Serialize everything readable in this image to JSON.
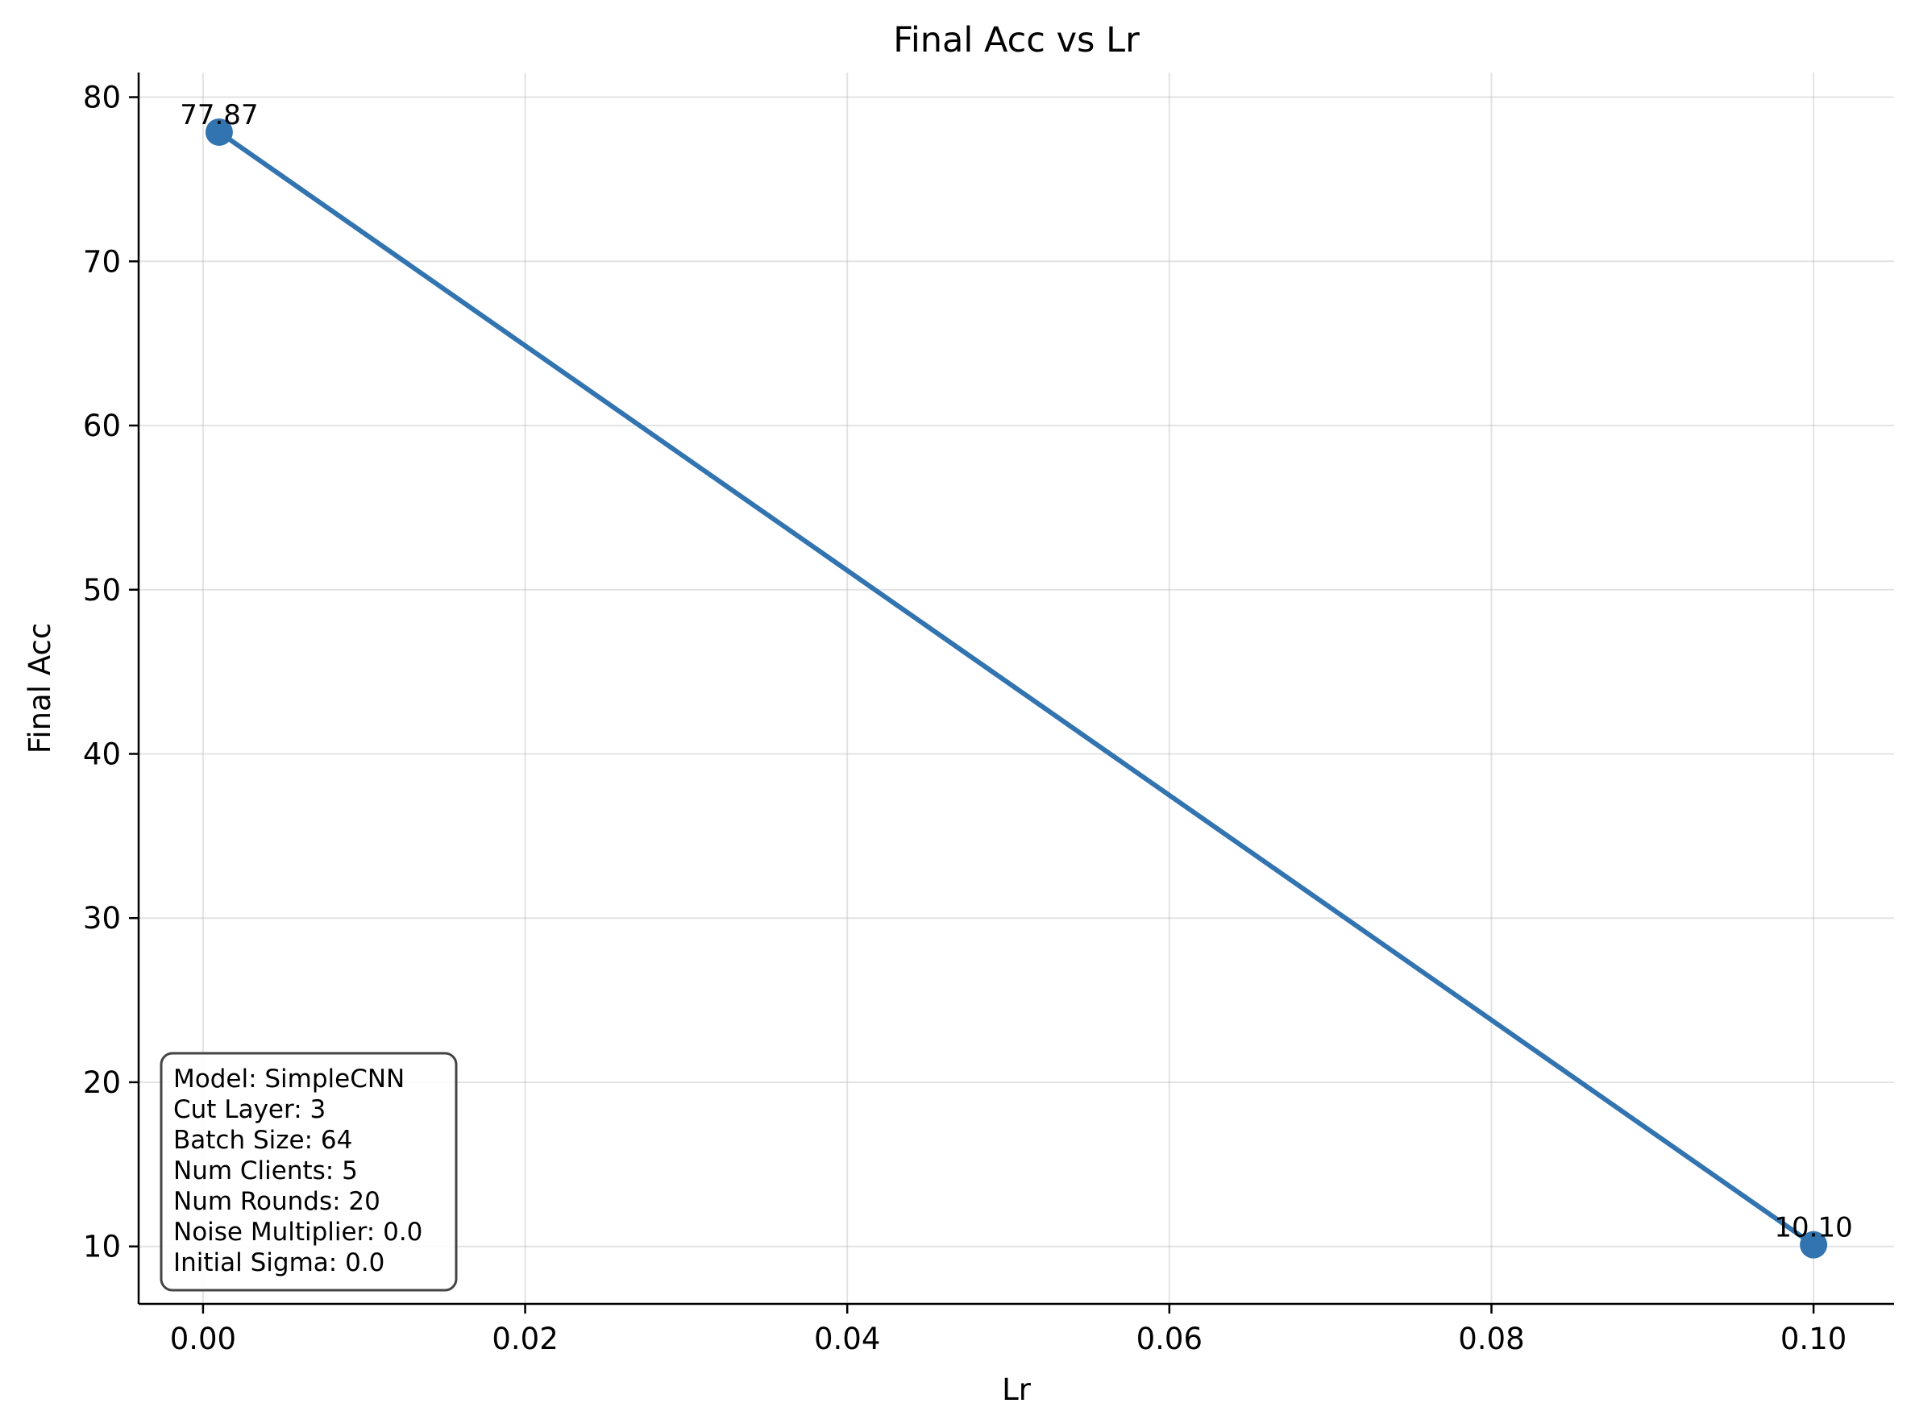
{
  "chart_data": {
    "type": "line",
    "title": "Final Acc vs Lr",
    "xlabel": "Lr",
    "ylabel": "Final Acc",
    "x": [
      0.001,
      0.1
    ],
    "series": [
      {
        "values": [
          77.87,
          10.1
        ],
        "color": "#3274b0"
      }
    ],
    "data_labels": [
      "77.87",
      "10.10"
    ],
    "xlim": [
      -0.004,
      0.105
    ],
    "ylim": [
      6.5,
      81.5
    ],
    "x_ticks": [
      0.0,
      0.02,
      0.04,
      0.06,
      0.08,
      0.1
    ],
    "x_tick_labels": [
      "0.00",
      "0.02",
      "0.04",
      "0.06",
      "0.08",
      "0.10"
    ],
    "y_ticks": [
      10,
      20,
      30,
      40,
      50,
      60,
      70,
      80
    ],
    "y_tick_labels": [
      "10",
      "20",
      "30",
      "40",
      "50",
      "60",
      "70",
      "80"
    ],
    "grid": true,
    "info_box": {
      "placement": "bottom-left",
      "lines": [
        "Model: SimpleCNN",
        "Cut Layer: 3",
        "Batch Size: 64",
        "Num Clients: 5",
        "Num Rounds: 20",
        "Noise Multiplier: 0.0",
        "Initial Sigma: 0.0"
      ]
    }
  }
}
